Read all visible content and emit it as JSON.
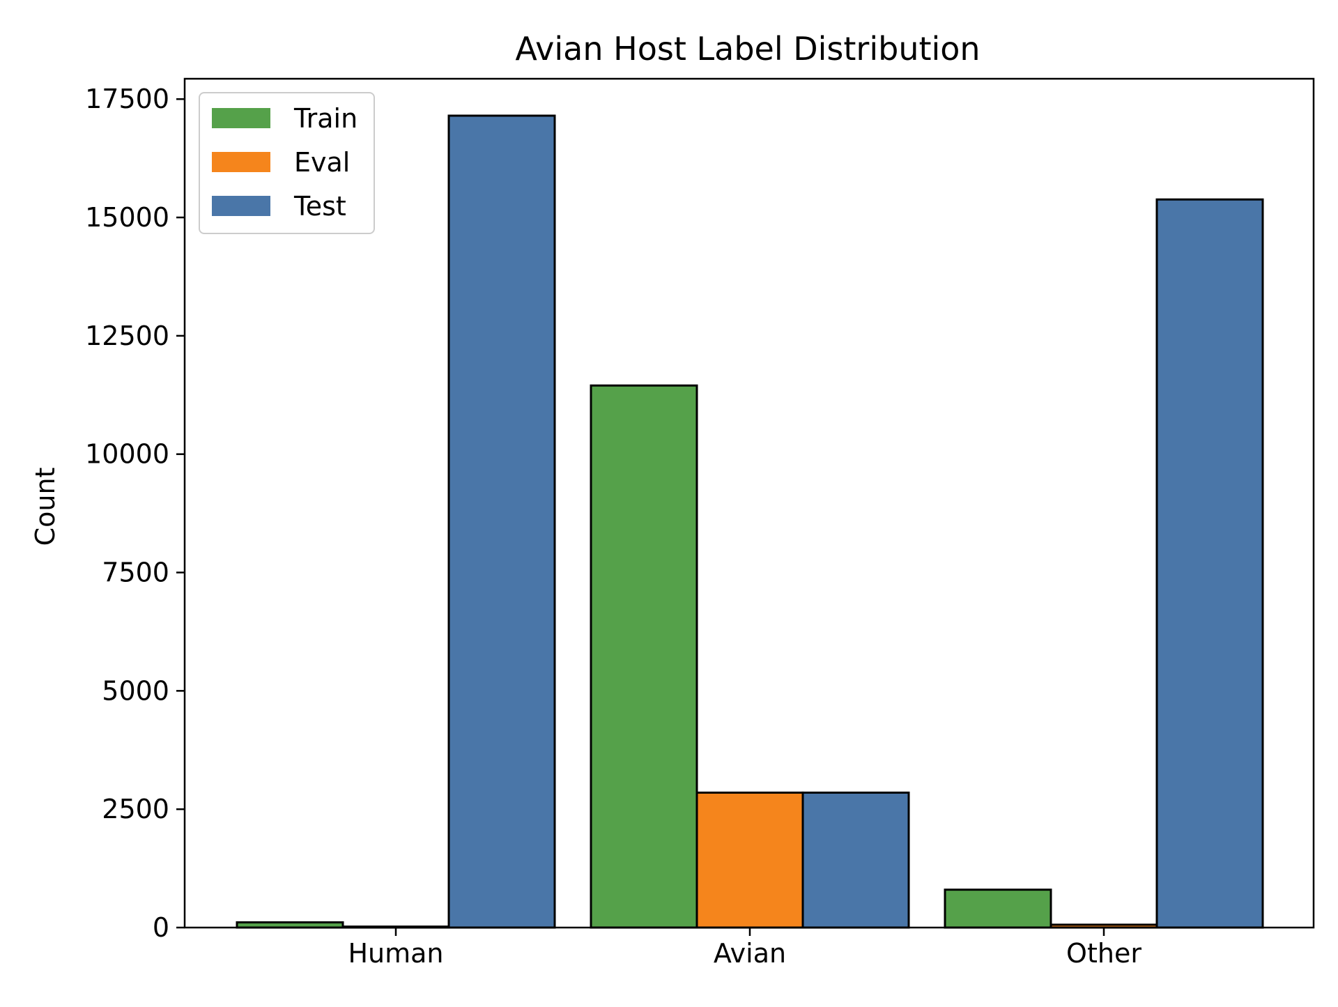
{
  "chart_data": {
    "type": "bar",
    "title": "Avian Host Label Distribution",
    "xlabel": "",
    "ylabel": "Count",
    "categories": [
      "Human",
      "Avian",
      "Other"
    ],
    "series": [
      {
        "name": "Train",
        "color": "#55a14a",
        "values": [
          110,
          11450,
          800
        ]
      },
      {
        "name": "Eval",
        "color": "#f5851c",
        "values": [
          20,
          2850,
          60
        ]
      },
      {
        "name": "Test",
        "color": "#4a76a8",
        "values": [
          17150,
          2850,
          15380
        ]
      }
    ],
    "ylim": [
      0,
      17500
    ],
    "yticks": [
      0,
      2500,
      5000,
      7500,
      10000,
      12500,
      15000,
      17500
    ],
    "ytick_labels": [
      "0",
      "2500",
      "5000",
      "7500",
      "10000",
      "12500",
      "15000",
      "17500"
    ],
    "grid": false,
    "legend_position": "top-left",
    "bar_edge_color": "#000000"
  }
}
